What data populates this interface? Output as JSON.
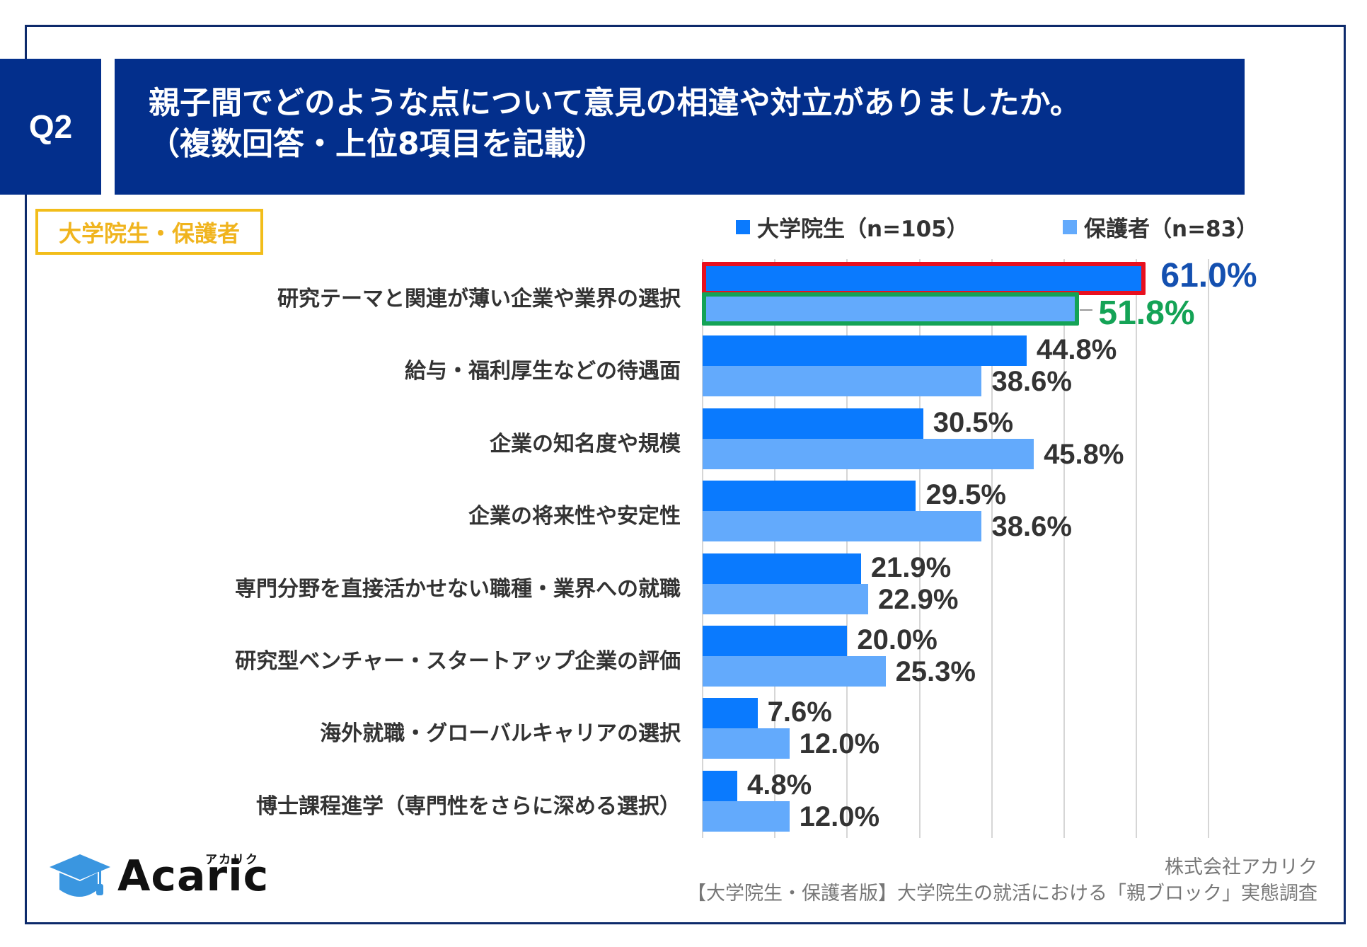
{
  "header": {
    "question_number": "Q2",
    "title_line1": "親子間でどのような点について意見の相違や対立がありましたか。",
    "title_line2": "（複数回答・上位8項目を記載）"
  },
  "badge": {
    "label": "大学院生・保護者"
  },
  "colors": {
    "header_bg": "#032f8c",
    "series_students": "#0a7afe",
    "series_parents": "#63aafc",
    "highlight_students": "#e8101f",
    "highlight_parents": "#14a356",
    "highlight_label_students": "#1450b0",
    "highlight_label_parents": "#14a356",
    "badge": "#f2bd1a"
  },
  "chart_data": {
    "type": "bar",
    "orientation": "horizontal",
    "title": "親子間でどのような点について意見の相違や対立がありましたか。（複数回答・上位8項目を記載）",
    "xlabel": "",
    "ylabel": "",
    "xlim": [
      0,
      70
    ],
    "grid": true,
    "legend_position": "top-right",
    "unit": "%",
    "categories": [
      "研究テーマと関連が薄い企業や業界の選択",
      "給与・福利厚生などの待遇面",
      "企業の知名度や規模",
      "企業の将来性や安定性",
      "専門分野を直接活かせない職種・業界への就職",
      "研究型ベンチャー・スタートアップ企業の評価",
      "海外就職・グローバルキャリアの選択",
      "博士課程進学（専門性をさらに深める選択）"
    ],
    "series": [
      {
        "name": "大学院生（n=105）",
        "values": [
          61.0,
          44.8,
          30.5,
          29.5,
          21.9,
          20.0,
          7.6,
          4.8
        ]
      },
      {
        "name": "保護者（n=83）",
        "values": [
          51.8,
          38.6,
          45.8,
          38.6,
          22.9,
          25.3,
          12.0,
          12.0
        ]
      }
    ],
    "value_labels": [
      [
        "61.0%",
        "44.8%",
        "30.5%",
        "29.5%",
        "21.9%",
        "20.0%",
        "7.6%",
        "4.8%"
      ],
      [
        "51.8%",
        "38.6%",
        "45.8%",
        "38.6%",
        "22.9%",
        "25.3%",
        "12.0%",
        "12.0%"
      ]
    ],
    "highlighted": {
      "category_index": 0,
      "series": [
        0,
        1
      ]
    }
  },
  "footer": {
    "company": "株式会社アカリク",
    "survey": "【大学院生・保護者版】大学院生の就活における「親ブロック」実態調査"
  },
  "logo": {
    "text": "Acaric",
    "kana": "アカリク",
    "icon": "graduation-cap-icon"
  }
}
